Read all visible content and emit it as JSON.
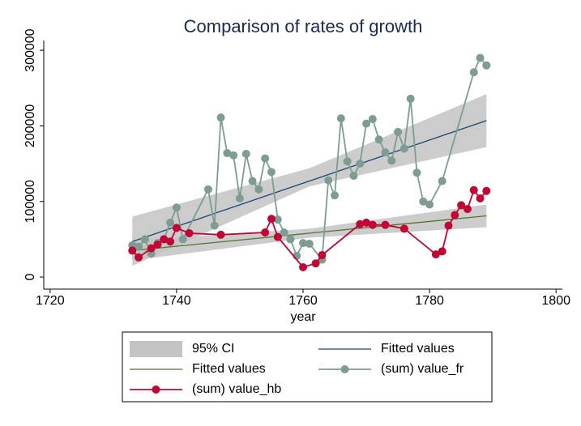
{
  "chart_data": {
    "type": "line",
    "title": "Comparison of rates of growth",
    "xlabel": "year",
    "xlim": [
      1719,
      1801
    ],
    "xticks": [
      1720,
      1740,
      1760,
      1780,
      1800
    ],
    "ylim": [
      -16000,
      313000
    ],
    "yticks": [
      0,
      100000,
      200000,
      300000
    ],
    "grid": false,
    "ci": {
      "name": "95% CI",
      "color": "#c3c3c3",
      "bands": [
        {
          "x": [
            1733,
            1761,
            1789
          ],
          "lower": [
            15000,
            120000,
            172000
          ],
          "upper": [
            80000,
            144000,
            242000
          ]
        },
        {
          "x": [
            1733,
            1761,
            1789
          ],
          "lower": [
            22000,
            52000,
            66000
          ],
          "upper": [
            48000,
            64000,
            96000
          ]
        }
      ]
    },
    "series": [
      {
        "name": "Fitted values",
        "kind": "fit",
        "color": "#1a476f",
        "x": [
          1733,
          1789
        ],
        "y": [
          47000,
          207000
        ]
      },
      {
        "name": "Fitted values",
        "kind": "fit",
        "color": "#55752f",
        "x": [
          1733,
          1789
        ],
        "y": [
          35000,
          81000
        ]
      },
      {
        "name": "(sum) value_fr",
        "kind": "connected",
        "color": "#7f9c92",
        "x": [
          1733,
          1734,
          1735,
          1736,
          1737,
          1738,
          1739,
          1740,
          1741,
          1745,
          1746,
          1747,
          1748,
          1749,
          1750,
          1751,
          1752,
          1753,
          1754,
          1755,
          1756,
          1757,
          1758,
          1759,
          1760,
          1761,
          1763,
          1764,
          1765,
          1766,
          1767,
          1768,
          1769,
          1770,
          1771,
          1772,
          1773,
          1774,
          1775,
          1776,
          1777,
          1778,
          1779,
          1780,
          1782,
          1787,
          1788,
          1789
        ],
        "y": [
          42000,
          40000,
          50000,
          31000,
          45000,
          50000,
          72000,
          92000,
          50000,
          116000,
          68000,
          211000,
          164000,
          161000,
          104000,
          163000,
          127000,
          116000,
          157000,
          139000,
          76000,
          59000,
          50000,
          28000,
          45000,
          44000,
          23000,
          128000,
          108000,
          210000,
          153000,
          134000,
          150000,
          203000,
          209000,
          182000,
          165000,
          154000,
          192000,
          170000,
          236000,
          138000,
          100000,
          96000,
          127000,
          271000,
          290000,
          280000
        ]
      },
      {
        "name": "(sum) value_hb",
        "kind": "connected",
        "color": "#c10534",
        "x": [
          1733,
          1734,
          1736,
          1737,
          1738,
          1739,
          1740,
          1742,
          1747,
          1754,
          1755,
          1756,
          1760,
          1762,
          1763,
          1769,
          1770,
          1771,
          1773,
          1776,
          1781,
          1782,
          1783,
          1784,
          1785,
          1786,
          1787,
          1788,
          1789
        ],
        "y": [
          35000,
          26000,
          38000,
          43000,
          50000,
          47000,
          65000,
          58000,
          56000,
          59000,
          77000,
          53000,
          13000,
          18000,
          29000,
          70000,
          72000,
          69000,
          69000,
          64000,
          30000,
          34000,
          68000,
          82000,
          95000,
          90000,
          115000,
          104000,
          114000
        ]
      }
    ]
  }
}
